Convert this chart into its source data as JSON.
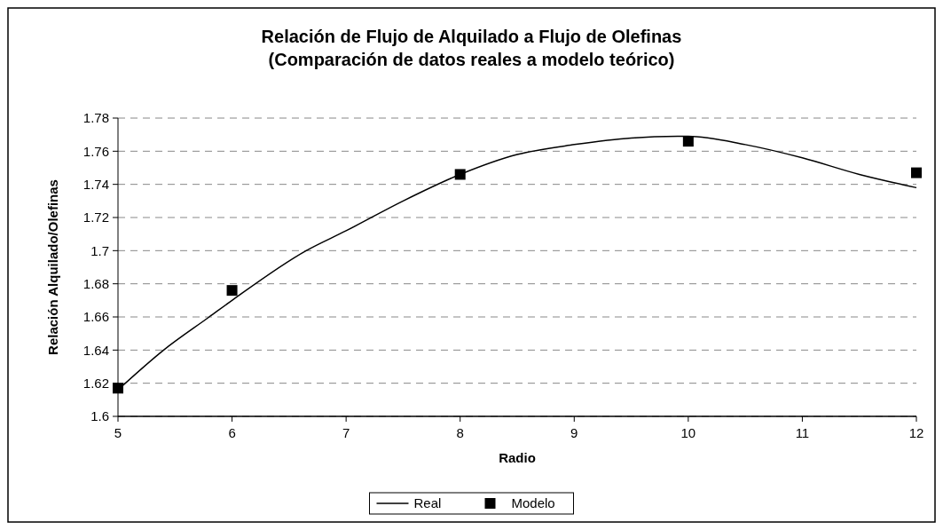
{
  "chart_data": {
    "type": "line",
    "title": "Relación de Flujo de Alquilado a Flujo de Olefinas\n(Comparación de datos reales a modelo teórico)",
    "xlabel": "Radio",
    "ylabel": "Relación Alquilado/Olefinas",
    "xlim": [
      5,
      12
    ],
    "xticks": [
      5,
      6,
      7,
      8,
      9,
      10,
      11,
      12
    ],
    "ylim": [
      1.6,
      1.78
    ],
    "yticks": [
      1.6,
      1.62,
      1.64,
      1.66,
      1.68,
      1.7,
      1.72,
      1.74,
      1.76,
      1.78
    ],
    "grid": "y",
    "legend": "bottom",
    "series": [
      {
        "name": "Real",
        "color": "#000000",
        "marker": "none",
        "x": [
          5,
          5.4,
          5.8,
          6,
          6.65,
          7,
          7.5,
          8,
          8.5,
          9,
          9.5,
          10,
          10.5,
          11,
          11.5,
          12
        ],
        "values": [
          1.616,
          1.64,
          1.66,
          1.67,
          1.7,
          1.712,
          1.73,
          1.746,
          1.758,
          1.764,
          1.768,
          1.769,
          1.764,
          1.756,
          1.746,
          1.738
        ]
      },
      {
        "name": "Modelo",
        "type": "scatter",
        "color": "#000000",
        "marker": "square",
        "x": [
          5,
          6,
          8,
          10,
          12
        ],
        "values": [
          1.617,
          1.676,
          1.746,
          1.766,
          1.747
        ]
      }
    ]
  }
}
